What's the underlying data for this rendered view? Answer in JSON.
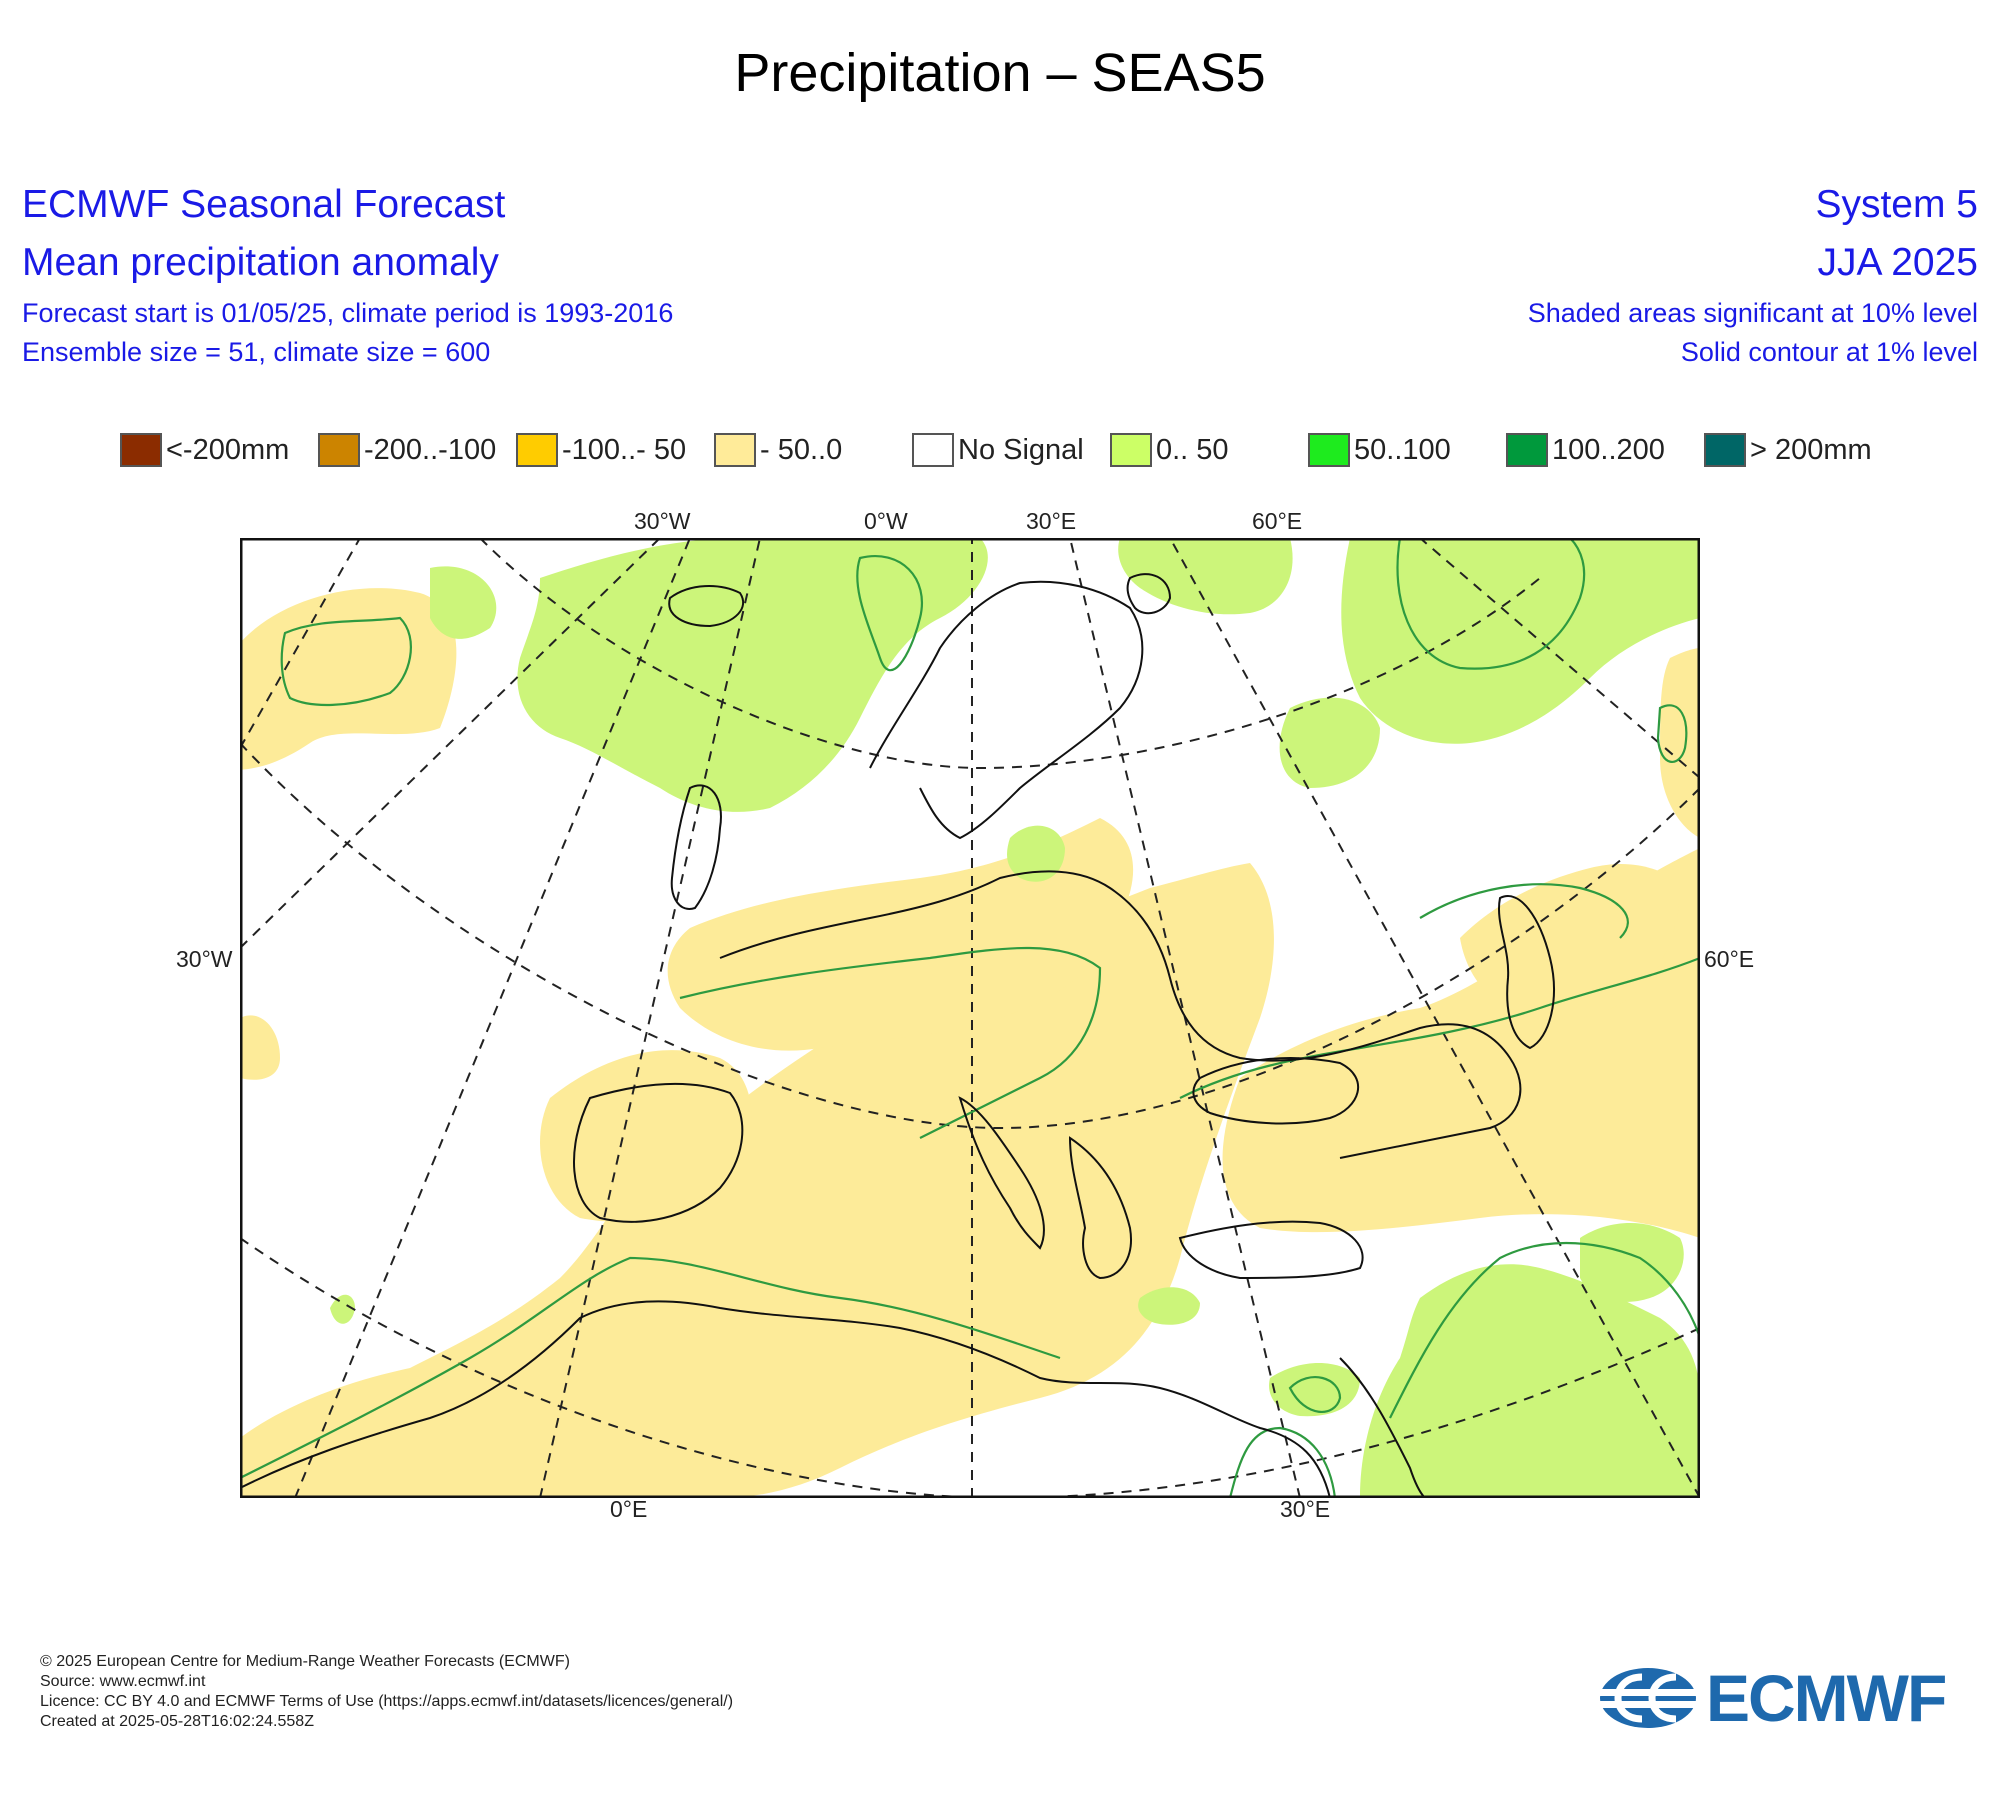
{
  "page_title": "Precipitation – SEAS5",
  "header": {
    "left": {
      "line1": "ECMWF Seasonal Forecast",
      "line2": "Mean precipitation anomaly",
      "line3": "Forecast start is 01/05/25, climate period is 1993-2016",
      "line4": "Ensemble size = 51, climate size = 600"
    },
    "right": {
      "line1": "System 5",
      "line2": "JJA 2025",
      "line3": "Shaded areas significant at 10% level",
      "line4": "Solid contour at 1% level"
    }
  },
  "legend": [
    {
      "label": "<-200mm",
      "color": "#8b2c00"
    },
    {
      "label": "-200..-100",
      "color": "#cc8400"
    },
    {
      "label": "-100..- 50",
      "color": "#ffcc00"
    },
    {
      "label": "- 50..0",
      "color": "#ffeb99"
    },
    {
      "label": "No Signal",
      "color": "#ffffff"
    },
    {
      "label": "0.. 50",
      "color": "#ccff66"
    },
    {
      "label": "50..100",
      "color": "#1eeb1e"
    },
    {
      "label": "100..200",
      "color": "#00993c"
    },
    {
      "label": "> 200mm",
      "color": "#006666"
    }
  ],
  "map": {
    "top_ticks": [
      "30°W",
      "0°W",
      "30°E",
      "60°E"
    ],
    "left_tick": "30°W",
    "right_tick": "60°E",
    "bottom_ticks": [
      "0°E",
      "30°E"
    ],
    "colors": {
      "dry": "#fdeb99",
      "wet": "#ccf57a",
      "coast": "#111111",
      "contour": "#2e9a40"
    }
  },
  "footer": {
    "line1": "© 2025 European Centre for Medium-Range Weather Forecasts (ECMWF)",
    "line2": "Source: www.ecmwf.int",
    "line3": "Licence: CC BY 4.0 and ECMWF Terms of Use (https://apps.ecmwf.int/datasets/licences/general/)",
    "line4": "Created at 2025-05-28T16:02:24.558Z"
  },
  "logo": {
    "text": "ECMWF",
    "color": "#1e69ad"
  }
}
